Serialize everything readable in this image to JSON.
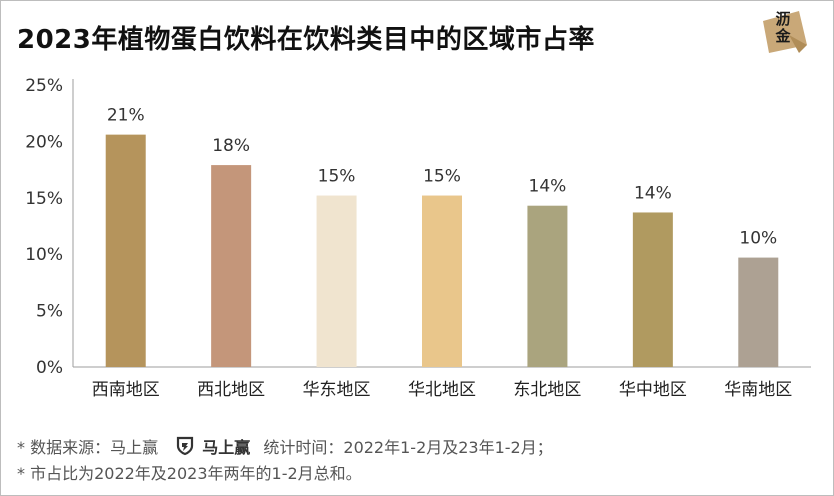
{
  "header": {
    "title": "2023年植物蛋白饮料在饮料类目中的区域市占率",
    "logo_line1": "沥",
    "logo_line2": "金"
  },
  "footer": {
    "source_prefix": "* 数据来源：马上赢",
    "brand_name": "马上赢",
    "period": "统计时间：2022年1-2月及23年1-2月；",
    "note": "* 市占比为2022年及2023年两年的1-2月总和。"
  },
  "chart_data": {
    "type": "bar",
    "title": "2023年植物蛋白饮料在饮料类目中的区域市占率",
    "xlabel": "",
    "ylabel": "",
    "categories": [
      "西南地区",
      "西北地区",
      "华东地区",
      "华北地区",
      "东北地区",
      "华中地区",
      "华南地区"
    ],
    "values": [
      20.6,
      17.9,
      15.2,
      15.2,
      14.3,
      13.7,
      9.7
    ],
    "value_labels": [
      "21%",
      "18%",
      "15%",
      "15%",
      "14%",
      "14%",
      "10%"
    ],
    "bar_colors": [
      "#b5945c",
      "#c4967a",
      "#f0e4cf",
      "#e9c68b",
      "#aaa47e",
      "#b09a60",
      "#ada193"
    ],
    "ylim": [
      0,
      25
    ],
    "yticks": [
      0,
      5,
      10,
      15,
      20,
      25
    ],
    "ytick_labels": [
      "0%",
      "5%",
      "10%",
      "15%",
      "20%",
      "25%"
    ],
    "grid": false,
    "legend": "none"
  },
  "colors": {
    "axis": "#9e9e9e",
    "tick_text": "#333333",
    "logo_bg": "#c9a878"
  }
}
